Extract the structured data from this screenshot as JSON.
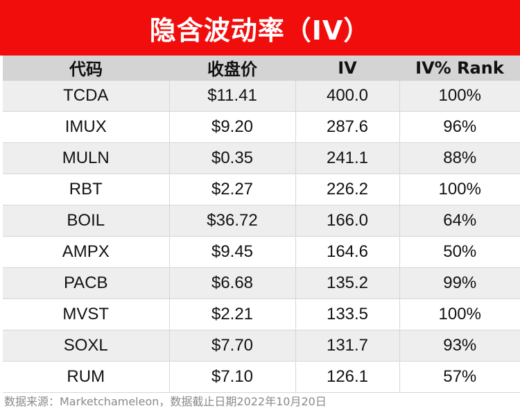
{
  "title": "隐含波动率（IV）",
  "colors": {
    "title_bar": "#f20d0d",
    "header_bg": "#d4d4d4",
    "stripe": "#eeeeee"
  },
  "table": {
    "headers": [
      "代码",
      "收盘价",
      "IV",
      "IV% Rank"
    ],
    "rows": [
      [
        "TCDA",
        "$11.41",
        "400.0",
        "100%"
      ],
      [
        "IMUX",
        "$9.20",
        "287.6",
        "96%"
      ],
      [
        "MULN",
        "$0.35",
        "241.1",
        "88%"
      ],
      [
        "RBT",
        "$2.27",
        "226.2",
        "100%"
      ],
      [
        "BOIL",
        "$36.72",
        "166.0",
        "64%"
      ],
      [
        "AMPX",
        "$9.45",
        "164.6",
        "50%"
      ],
      [
        "PACB",
        "$6.68",
        "135.2",
        "99%"
      ],
      [
        "MVST",
        "$2.21",
        "133.5",
        "100%"
      ],
      [
        "SOXL",
        "$7.70",
        "131.7",
        "93%"
      ],
      [
        "RUM",
        "$7.10",
        "126.1",
        "57%"
      ]
    ]
  },
  "source": "数据来源：Marketchameleon，数据截止日期2022年10月20日"
}
